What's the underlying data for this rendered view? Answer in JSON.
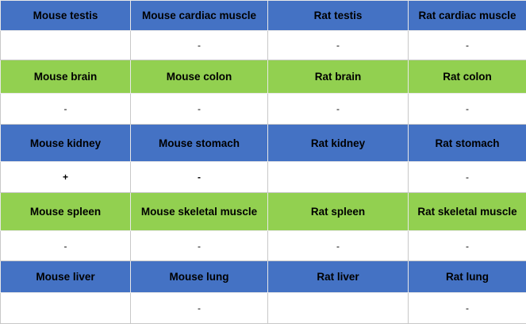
{
  "table": {
    "rows": [
      [
        "Mouse testis",
        "Mouse cardiac muscle",
        "Rat testis",
        "Rat cardiac muscle"
      ],
      [
        null,
        "-",
        "-",
        "-"
      ],
      [
        "Mouse brain",
        "Mouse colon",
        "Rat brain",
        "Rat colon"
      ],
      [
        "-",
        "-",
        "-",
        "-"
      ],
      [
        "Mouse kidney",
        "Mouse stomach",
        "Rat kidney",
        "Rat stomach"
      ],
      [
        "+",
        "-",
        null,
        "-"
      ],
      [
        "Mouse spleen",
        "Mouse skeletal muscle",
        "Rat spleen",
        "Rat skeletal muscle"
      ],
      [
        "-",
        "-",
        "-",
        "-"
      ],
      [
        "Mouse liver",
        "Mouse lung",
        "Rat liver",
        "Rat lung"
      ],
      [
        null,
        "-",
        null,
        "-"
      ]
    ]
  }
}
